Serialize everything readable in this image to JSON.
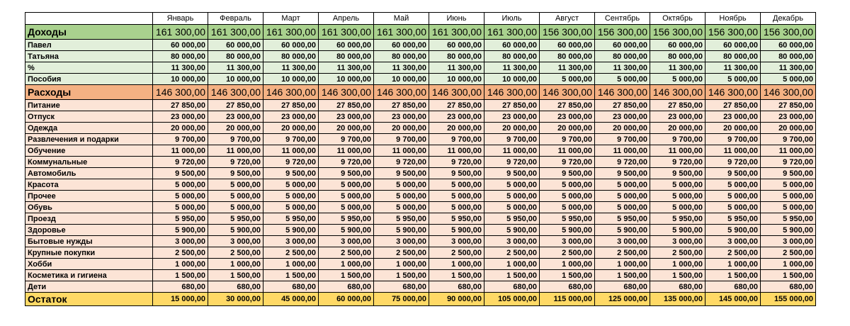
{
  "months": [
    "Январь",
    "Февраль",
    "Март",
    "Апрель",
    "Май",
    "Июнь",
    "Июль",
    "Август",
    "Сентябрь",
    "Октябрь",
    "Ноябрь",
    "Декабрь"
  ],
  "income": {
    "label": "Доходы",
    "totals": [
      "161 300,00",
      "161 300,00",
      "161 300,00",
      "161 300,00",
      "161 300,00",
      "161 300,00",
      "161 300,00",
      "156 300,00",
      "156 300,00",
      "156 300,00",
      "156 300,00",
      "156 300,00"
    ],
    "items": [
      {
        "name": "Павел",
        "values": [
          "60 000,00",
          "60 000,00",
          "60 000,00",
          "60 000,00",
          "60 000,00",
          "60 000,00",
          "60 000,00",
          "60 000,00",
          "60 000,00",
          "60 000,00",
          "60 000,00",
          "60 000,00"
        ]
      },
      {
        "name": "Татьяна",
        "values": [
          "80 000,00",
          "80 000,00",
          "80 000,00",
          "80 000,00",
          "80 000,00",
          "80 000,00",
          "80 000,00",
          "80 000,00",
          "80 000,00",
          "80 000,00",
          "80 000,00",
          "80 000,00"
        ]
      },
      {
        "name": "%",
        "values": [
          "11 300,00",
          "11 300,00",
          "11 300,00",
          "11 300,00",
          "11 300,00",
          "11 300,00",
          "11 300,00",
          "11 300,00",
          "11 300,00",
          "11 300,00",
          "11 300,00",
          "11 300,00"
        ]
      },
      {
        "name": "Пособия",
        "values": [
          "10 000,00",
          "10 000,00",
          "10 000,00",
          "10 000,00",
          "10 000,00",
          "10 000,00",
          "10 000,00",
          "5 000,00",
          "5 000,00",
          "5 000,00",
          "5 000,00",
          "5 000,00"
        ]
      }
    ]
  },
  "expenses": {
    "label": "Расходы",
    "totals": [
      "146 300,00",
      "146 300,00",
      "146 300,00",
      "146 300,00",
      "146 300,00",
      "146 300,00",
      "146 300,00",
      "146 300,00",
      "146 300,00",
      "146 300,00",
      "146 300,00",
      "146 300,00"
    ],
    "items": [
      {
        "name": "Питание",
        "values": [
          "27 850,00",
          "27 850,00",
          "27 850,00",
          "27 850,00",
          "27 850,00",
          "27 850,00",
          "27 850,00",
          "27 850,00",
          "27 850,00",
          "27 850,00",
          "27 850,00",
          "27 850,00"
        ]
      },
      {
        "name": "Отпуск",
        "values": [
          "23 000,00",
          "23 000,00",
          "23 000,00",
          "23 000,00",
          "23 000,00",
          "23 000,00",
          "23 000,00",
          "23 000,00",
          "23 000,00",
          "23 000,00",
          "23 000,00",
          "23 000,00"
        ]
      },
      {
        "name": "Одежда",
        "values": [
          "20 000,00",
          "20 000,00",
          "20 000,00",
          "20 000,00",
          "20 000,00",
          "20 000,00",
          "20 000,00",
          "20 000,00",
          "20 000,00",
          "20 000,00",
          "20 000,00",
          "20 000,00"
        ]
      },
      {
        "name": "Развлечения и подарки",
        "values": [
          "9 700,00",
          "9 700,00",
          "9 700,00",
          "9 700,00",
          "9 700,00",
          "9 700,00",
          "9 700,00",
          "9 700,00",
          "9 700,00",
          "9 700,00",
          "9 700,00",
          "9 700,00"
        ]
      },
      {
        "name": "Обучение",
        "values": [
          "11 000,00",
          "11 000,00",
          "11 000,00",
          "11 000,00",
          "11 000,00",
          "11 000,00",
          "11 000,00",
          "11 000,00",
          "11 000,00",
          "11 000,00",
          "11 000,00",
          "11 000,00"
        ]
      },
      {
        "name": "Коммунальные",
        "values": [
          "9 720,00",
          "9 720,00",
          "9 720,00",
          "9 720,00",
          "9 720,00",
          "9 720,00",
          "9 720,00",
          "9 720,00",
          "9 720,00",
          "9 720,00",
          "9 720,00",
          "9 720,00"
        ]
      },
      {
        "name": "Автомобиль",
        "values": [
          "9 500,00",
          "9 500,00",
          "9 500,00",
          "9 500,00",
          "9 500,00",
          "9 500,00",
          "9 500,00",
          "9 500,00",
          "9 500,00",
          "9 500,00",
          "9 500,00",
          "9 500,00"
        ]
      },
      {
        "name": "Красота",
        "values": [
          "5 000,00",
          "5 000,00",
          "5 000,00",
          "5 000,00",
          "5 000,00",
          "5 000,00",
          "5 000,00",
          "5 000,00",
          "5 000,00",
          "5 000,00",
          "5 000,00",
          "5 000,00"
        ]
      },
      {
        "name": "Прочее",
        "values": [
          "5 000,00",
          "5 000,00",
          "5 000,00",
          "5 000,00",
          "5 000,00",
          "5 000,00",
          "5 000,00",
          "5 000,00",
          "5 000,00",
          "5 000,00",
          "5 000,00",
          "5 000,00"
        ]
      },
      {
        "name": "Обувь",
        "values": [
          "5 000,00",
          "5 000,00",
          "5 000,00",
          "5 000,00",
          "5 000,00",
          "5 000,00",
          "5 000,00",
          "5 000,00",
          "5 000,00",
          "5 000,00",
          "5 000,00",
          "5 000,00"
        ]
      },
      {
        "name": "Проезд",
        "values": [
          "5 950,00",
          "5 950,00",
          "5 950,00",
          "5 950,00",
          "5 950,00",
          "5 950,00",
          "5 950,00",
          "5 950,00",
          "5 950,00",
          "5 950,00",
          "5 950,00",
          "5 950,00"
        ]
      },
      {
        "name": "Здоровье",
        "values": [
          "5 900,00",
          "5 900,00",
          "5 900,00",
          "5 900,00",
          "5 900,00",
          "5 900,00",
          "5 900,00",
          "5 900,00",
          "5 900,00",
          "5 900,00",
          "5 900,00",
          "5 900,00"
        ]
      },
      {
        "name": "Бытовые нужды",
        "values": [
          "3 000,00",
          "3 000,00",
          "3 000,00",
          "3 000,00",
          "3 000,00",
          "3 000,00",
          "3 000,00",
          "3 000,00",
          "3 000,00",
          "3 000,00",
          "3 000,00",
          "3 000,00"
        ]
      },
      {
        "name": "Крупные покупки",
        "values": [
          "2 500,00",
          "2 500,00",
          "2 500,00",
          "2 500,00",
          "2 500,00",
          "2 500,00",
          "2 500,00",
          "2 500,00",
          "2 500,00",
          "2 500,00",
          "2 500,00",
          "2 500,00"
        ]
      },
      {
        "name": "Хобби",
        "values": [
          "1 000,00",
          "1 000,00",
          "1 000,00",
          "1 000,00",
          "1 000,00",
          "1 000,00",
          "1 000,00",
          "1 000,00",
          "1 000,00",
          "1 000,00",
          "1 000,00",
          "1 000,00"
        ]
      },
      {
        "name": "Косметика и гигиена",
        "values": [
          "1 500,00",
          "1 500,00",
          "1 500,00",
          "1 500,00",
          "1 500,00",
          "1 500,00",
          "1 500,00",
          "1 500,00",
          "1 500,00",
          "1 500,00",
          "1 500,00",
          "1 500,00"
        ]
      },
      {
        "name": "Дети",
        "values": [
          "680,00",
          "680,00",
          "680,00",
          "680,00",
          "680,00",
          "680,00",
          "680,00",
          "680,00",
          "680,00",
          "680,00",
          "680,00",
          "680,00"
        ]
      }
    ]
  },
  "balance": {
    "label": "Остаток",
    "values": [
      "15 000,00",
      "30 000,00",
      "45 000,00",
      "60 000,00",
      "75 000,00",
      "90 000,00",
      "105 000,00",
      "115 000,00",
      "125 000,00",
      "135 000,00",
      "145 000,00",
      "155 000,00"
    ]
  }
}
